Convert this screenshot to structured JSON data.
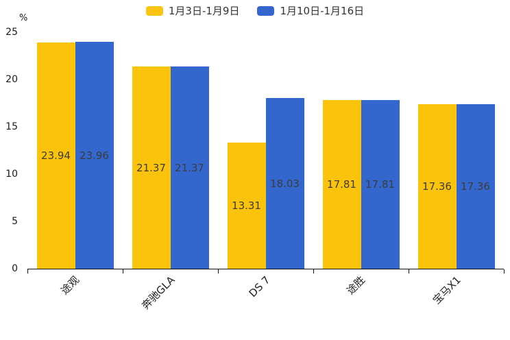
{
  "chart_data": {
    "type": "bar",
    "title": "",
    "xlabel": "",
    "ylabel": "%",
    "categories": [
      "途观",
      "奔驰GLA",
      "DS 7",
      "途胜",
      "宝马X1"
    ],
    "series": [
      {
        "name": "1月3日-1月9日",
        "color": "#FCC30B",
        "values": [
          23.94,
          21.37,
          13.31,
          17.81,
          17.36
        ]
      },
      {
        "name": "1月10日-1月16日",
        "color": "#3367CE",
        "values": [
          23.96,
          21.37,
          18.03,
          17.81,
          17.36
        ]
      }
    ],
    "ylim": [
      0,
      25
    ],
    "yticks": [
      0,
      5,
      10,
      15,
      20,
      25
    ],
    "grid": false,
    "legend_position": "top-center",
    "value_label_position": "inside-center",
    "value_label_color": "#3C3C3C",
    "axis_color": "#111111",
    "background_color": "#FFFFFF"
  }
}
